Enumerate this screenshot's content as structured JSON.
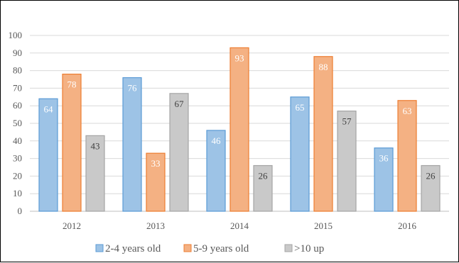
{
  "chart_data": {
    "type": "bar",
    "categories": [
      "2012",
      "2013",
      "2014",
      "2015",
      "2016"
    ],
    "series": [
      {
        "name": "2-4 years old",
        "values": [
          64,
          76,
          46,
          65,
          36
        ],
        "color": "#9dc3e6",
        "edge": "#5b9bd5",
        "label_color": "#ffffff"
      },
      {
        "name": "5-9 years old",
        "values": [
          78,
          33,
          93,
          88,
          63
        ],
        "color": "#f4b183",
        "edge": "#ed7d31",
        "label_color": "#ffffff"
      },
      {
        "name": ">10 up",
        "values": [
          43,
          67,
          26,
          57,
          26
        ],
        "color": "#c9c9c9",
        "edge": "#a5a5a5",
        "label_color": "#404040"
      }
    ],
    "ylim": [
      0,
      100
    ],
    "yticks": [
      0,
      10,
      20,
      30,
      40,
      50,
      60,
      70,
      80,
      90,
      100
    ],
    "grid": true,
    "legend": "bottom",
    "title": "",
    "xlabel": "",
    "ylabel": ""
  }
}
